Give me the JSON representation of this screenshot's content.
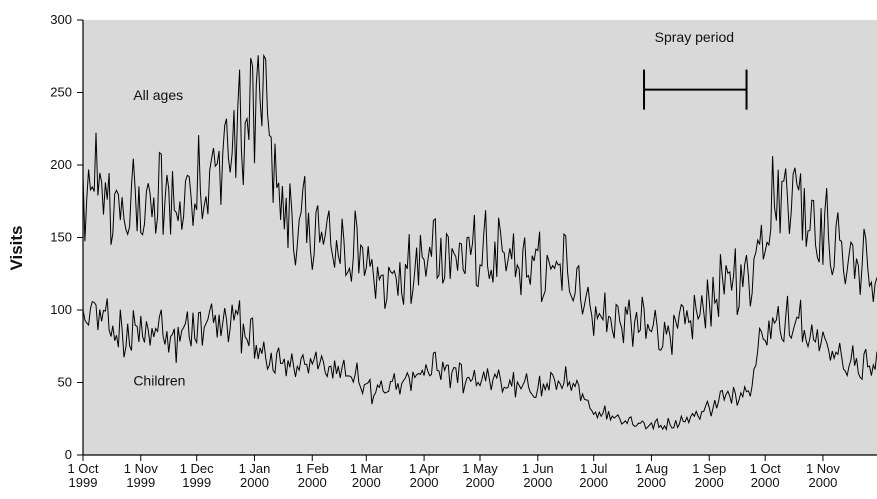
{
  "chart_data": {
    "type": "line",
    "title": "",
    "xlabel": "",
    "ylabel": "Visits",
    "ylim": [
      0,
      300
    ],
    "xlim": [
      "1999-10-01",
      "2000-11-30"
    ],
    "grid": false,
    "background": "#d9d9d9",
    "line_color": "#000000",
    "y_ticks": [
      0,
      50,
      100,
      150,
      200,
      250,
      300
    ],
    "x_ticks": [
      {
        "date": "1999-10-01",
        "label1": "1 Oct",
        "label2": "1999"
      },
      {
        "date": "1999-11-01",
        "label1": "1 Nov",
        "label2": "1999"
      },
      {
        "date": "1999-12-01",
        "label1": "1 Dec",
        "label2": "1999"
      },
      {
        "date": "2000-01-01",
        "label1": "1 Jan",
        "label2": "2000"
      },
      {
        "date": "2000-02-01",
        "label1": "1 Feb",
        "label2": "2000"
      },
      {
        "date": "2000-03-01",
        "label1": "1 Mar",
        "label2": "2000"
      },
      {
        "date": "2000-04-01",
        "label1": "1 Apr",
        "label2": "2000"
      },
      {
        "date": "2000-05-01",
        "label1": "1 May",
        "label2": "2000"
      },
      {
        "date": "2000-06-01",
        "label1": "1 Jun",
        "label2": "2000"
      },
      {
        "date": "2000-07-01",
        "label1": "1 Jul",
        "label2": "2000"
      },
      {
        "date": "2000-08-01",
        "label1": "1 Aug",
        "label2": "2000"
      },
      {
        "date": "2000-09-01",
        "label1": "1 Sep",
        "label2": "2000"
      },
      {
        "date": "2000-10-01",
        "label1": "1 Oct",
        "label2": "2000"
      },
      {
        "date": "2000-11-01",
        "label1": "1 Nov",
        "label2": "2000"
      }
    ],
    "series": [
      {
        "name": "All ages",
        "x": [
          "1999-10-01",
          "1999-10-08",
          "1999-10-15",
          "1999-10-22",
          "1999-11-01",
          "1999-11-08",
          "1999-11-15",
          "1999-11-22",
          "1999-12-01",
          "1999-12-08",
          "1999-12-15",
          "1999-12-22",
          "2000-01-01",
          "2000-01-05",
          "2000-01-12",
          "2000-01-19",
          "2000-02-01",
          "2000-02-08",
          "2000-02-15",
          "2000-02-22",
          "2000-03-01",
          "2000-03-08",
          "2000-03-15",
          "2000-03-22",
          "2000-04-01",
          "2000-04-08",
          "2000-04-15",
          "2000-04-22",
          "2000-05-01",
          "2000-05-08",
          "2000-05-15",
          "2000-05-22",
          "2000-06-01",
          "2000-06-08",
          "2000-06-15",
          "2000-06-22",
          "2000-07-01",
          "2000-07-08",
          "2000-07-15",
          "2000-07-22",
          "2000-08-01",
          "2000-08-08",
          "2000-08-15",
          "2000-08-22",
          "2000-09-01",
          "2000-09-08",
          "2000-09-15",
          "2000-09-22",
          "2000-10-01",
          "2000-10-08",
          "2000-10-15",
          "2000-10-22",
          "2000-11-01",
          "2000-11-08",
          "2000-11-15",
          "2000-11-22",
          "2000-11-30"
        ],
        "values": [
          165,
          180,
          170,
          160,
          170,
          165,
          175,
          165,
          190,
          180,
          205,
          210,
          230,
          250,
          190,
          155,
          150,
          145,
          140,
          135,
          130,
          125,
          118,
          118,
          130,
          140,
          135,
          132,
          135,
          132,
          128,
          126,
          125,
          122,
          125,
          120,
          95,
          92,
          90,
          88,
          85,
          83,
          85,
          88,
          105,
          112,
          120,
          118,
          160,
          175,
          185,
          170,
          150,
          140,
          132,
          128,
          115
        ]
      },
      {
        "name": "Children",
        "x": [
          "1999-10-01",
          "1999-10-08",
          "1999-10-15",
          "1999-10-22",
          "1999-11-01",
          "1999-11-08",
          "1999-11-15",
          "1999-11-22",
          "1999-12-01",
          "1999-12-08",
          "1999-12-15",
          "1999-12-22",
          "2000-01-01",
          "2000-01-05",
          "2000-01-12",
          "2000-01-19",
          "2000-02-01",
          "2000-02-08",
          "2000-02-15",
          "2000-02-22",
          "2000-03-01",
          "2000-03-08",
          "2000-03-15",
          "2000-03-22",
          "2000-04-01",
          "2000-04-08",
          "2000-04-15",
          "2000-04-22",
          "2000-05-01",
          "2000-05-08",
          "2000-05-15",
          "2000-05-22",
          "2000-06-01",
          "2000-06-08",
          "2000-06-15",
          "2000-06-22",
          "2000-07-01",
          "2000-07-08",
          "2000-07-15",
          "2000-07-22",
          "2000-08-01",
          "2000-08-08",
          "2000-08-15",
          "2000-08-22",
          "2000-09-01",
          "2000-09-08",
          "2000-09-15",
          "2000-09-22",
          "2000-10-01",
          "2000-10-08",
          "2000-10-15",
          "2000-10-22",
          "2000-11-01",
          "2000-11-08",
          "2000-11-15",
          "2000-11-22",
          "2000-11-30"
        ],
        "values": [
          90,
          95,
          85,
          82,
          85,
          82,
          80,
          78,
          90,
          92,
          95,
          90,
          75,
          70,
          62,
          60,
          60,
          60,
          58,
          55,
          45,
          42,
          45,
          48,
          55,
          58,
          55,
          52,
          52,
          50,
          48,
          45,
          45,
          48,
          50,
          42,
          30,
          28,
          25,
          22,
          20,
          20,
          22,
          25,
          32,
          38,
          42,
          45,
          85,
          92,
          88,
          85,
          75,
          68,
          62,
          58,
          60
        ]
      }
    ],
    "annotations": [
      {
        "text": "All ages",
        "x": "1999-10-28",
        "y": 245
      },
      {
        "text": "Children",
        "x": "1999-10-28",
        "y": 48
      },
      {
        "text": "Spray period",
        "x": "2000-08-24",
        "y": 285
      }
    ],
    "spray_period": {
      "start": "2000-07-28",
      "end": "2000-09-21",
      "y": 252
    }
  }
}
